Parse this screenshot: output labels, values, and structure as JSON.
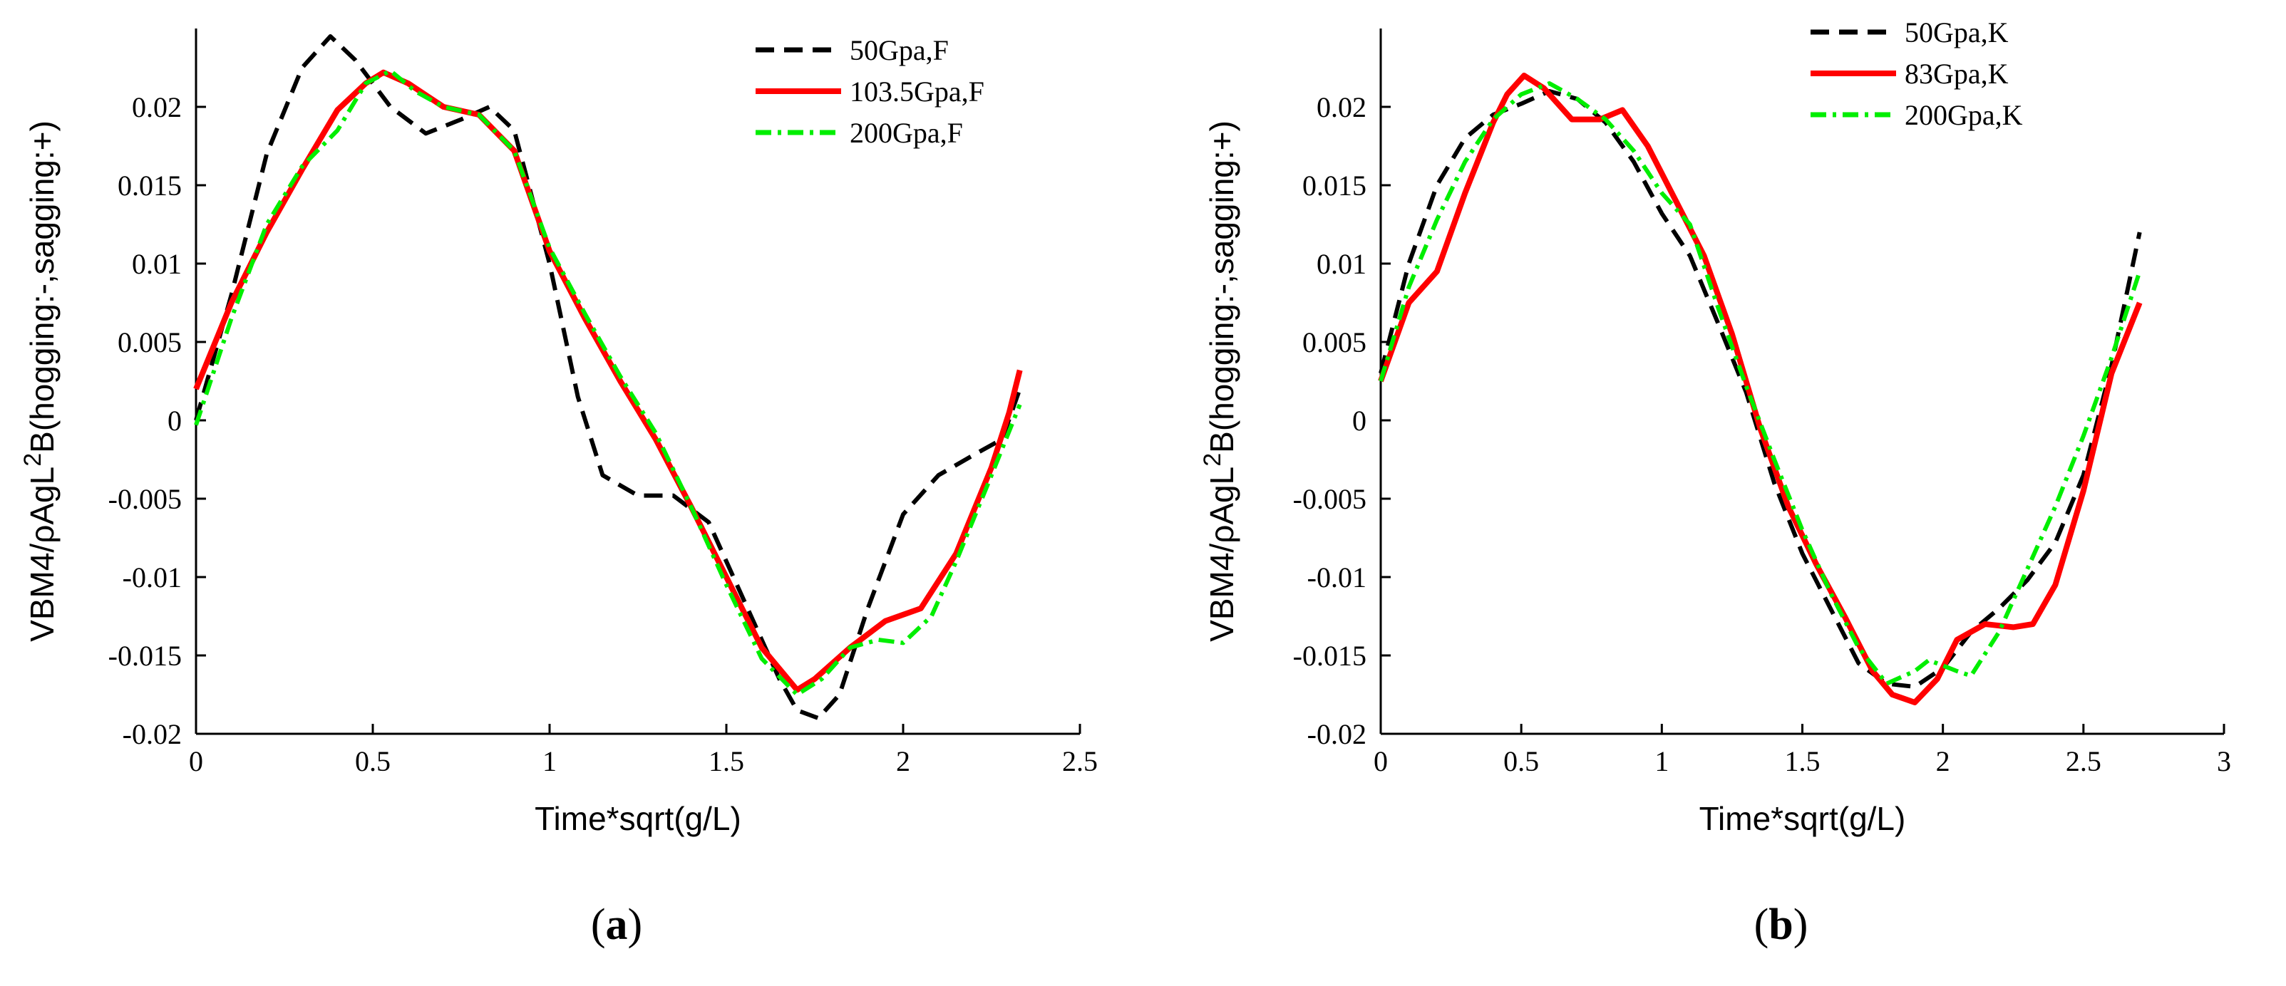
{
  "chart_data": [
    {
      "type": "line",
      "caption": "(a)",
      "caption_letter": "a",
      "xlabel": "Time*sqrt(g/L)",
      "ylabel": "VBM4/ρAgL²B(hogging:-,sagging:+)",
      "ylabel_parts": {
        "before": "VBM4/ρAgL",
        "sup": "2",
        "after": "B(hogging:-,sagging:+)"
      },
      "xlim": [
        0,
        2.5
      ],
      "ylim": [
        -0.02,
        0.025
      ],
      "xticks": [
        0,
        0.5,
        1,
        1.5,
        2,
        2.5
      ],
      "xtick_labels": [
        "0",
        "0.5",
        "1",
        "1.5",
        "2",
        "2.5"
      ],
      "yticks": [
        -0.02,
        -0.015,
        -0.01,
        -0.005,
        0,
        0.005,
        0.01,
        0.015,
        0.02
      ],
      "ytick_labels": [
        "-0.02",
        "-0.015",
        "-0.01",
        "-0.005",
        "0",
        "0.005",
        "0.01",
        "0.015",
        "0.02"
      ],
      "grid": false,
      "legend_position": "top-right",
      "series": [
        {
          "name": "50Gpa,F",
          "color": "#000000",
          "dash": "dashed",
          "x": [
            0,
            0.1,
            0.2,
            0.3,
            0.38,
            0.45,
            0.55,
            0.65,
            0.75,
            0.83,
            0.9,
            1.0,
            1.08,
            1.15,
            1.25,
            1.35,
            1.45,
            1.55,
            1.65,
            1.7,
            1.76,
            1.82,
            1.9,
            2.0,
            2.1,
            2.2,
            2.28,
            2.33
          ],
          "y": [
            0,
            0.008,
            0.017,
            0.0225,
            0.0245,
            0.023,
            0.02,
            0.0183,
            0.0192,
            0.02,
            0.0185,
            0.01,
            0.0015,
            -0.0035,
            -0.0048,
            -0.0048,
            -0.0065,
            -0.0115,
            -0.0165,
            -0.0185,
            -0.019,
            -0.0175,
            -0.012,
            -0.006,
            -0.0035,
            -0.0022,
            -0.0012,
            0.002
          ]
        },
        {
          "name": "103.5Gpa,F",
          "color": "#ff0000",
          "dash": "solid",
          "x": [
            0,
            0.1,
            0.2,
            0.3,
            0.4,
            0.48,
            0.53,
            0.6,
            0.7,
            0.8,
            0.9,
            1.0,
            1.1,
            1.2,
            1.3,
            1.4,
            1.5,
            1.6,
            1.7,
            1.75,
            1.85,
            1.95,
            2.05,
            2.15,
            2.25,
            2.3,
            2.33
          ],
          "y": [
            0.002,
            0.0075,
            0.012,
            0.016,
            0.0198,
            0.0215,
            0.0222,
            0.0215,
            0.02,
            0.0195,
            0.0172,
            0.0108,
            0.0065,
            0.0025,
            -0.0012,
            -0.0055,
            -0.01,
            -0.0145,
            -0.0172,
            -0.0165,
            -0.0145,
            -0.0128,
            -0.012,
            -0.0085,
            -0.003,
            0.0005,
            0.0032
          ]
        },
        {
          "name": "200Gpa,F",
          "color": "#00ee00",
          "dash": "dashdot",
          "x": [
            0,
            0.1,
            0.2,
            0.3,
            0.4,
            0.48,
            0.55,
            0.62,
            0.7,
            0.8,
            0.9,
            1.0,
            1.1,
            1.2,
            1.3,
            1.4,
            1.5,
            1.6,
            1.7,
            1.77,
            1.85,
            1.93,
            2.0,
            2.08,
            2.15,
            2.25,
            2.33
          ],
          "y": [
            -0.0003,
            0.0065,
            0.0125,
            0.0162,
            0.0185,
            0.0215,
            0.0223,
            0.021,
            0.02,
            0.0195,
            0.0172,
            0.011,
            0.0068,
            0.0028,
            -0.0008,
            -0.0055,
            -0.0105,
            -0.0152,
            -0.0175,
            -0.0165,
            -0.0145,
            -0.014,
            -0.0142,
            -0.0125,
            -0.009,
            -0.0035,
            0.001
          ]
        }
      ]
    },
    {
      "type": "line",
      "caption": "(b)",
      "caption_letter": "b",
      "xlabel": "Time*sqrt(g/L)",
      "ylabel": "VBM4/ρAgL²B(hogging:-,sagging:+)",
      "ylabel_parts": {
        "before": "VBM4/ρAgL",
        "sup": "2",
        "after": "B(hogging:-,sagging:+)"
      },
      "xlim": [
        0,
        3
      ],
      "ylim": [
        -0.02,
        0.025
      ],
      "xticks": [
        0,
        0.5,
        1,
        1.5,
        2,
        2.5,
        3
      ],
      "xtick_labels": [
        "0",
        "0.5",
        "1",
        "1.5",
        "2",
        "2.5",
        "3"
      ],
      "yticks": [
        -0.02,
        -0.015,
        -0.01,
        -0.005,
        0,
        0.005,
        0.01,
        0.015,
        0.02
      ],
      "ytick_labels": [
        "-0.02",
        "-0.015",
        "-0.01",
        "-0.005",
        "0",
        "0.005",
        "0.01",
        "0.015",
        "0.02"
      ],
      "grid": false,
      "legend_position": "top-right",
      "series": [
        {
          "name": "50Gpa,K",
          "color": "#000000",
          "dash": "dashed",
          "x": [
            0,
            0.1,
            0.2,
            0.3,
            0.4,
            0.5,
            0.6,
            0.7,
            0.8,
            0.9,
            1.0,
            1.1,
            1.2,
            1.3,
            1.4,
            1.5,
            1.6,
            1.7,
            1.8,
            1.9,
            2.0,
            2.1,
            2.2,
            2.3,
            2.4,
            2.5,
            2.6,
            2.7
          ],
          "y": [
            0.003,
            0.01,
            0.015,
            0.018,
            0.0195,
            0.0202,
            0.021,
            0.0205,
            0.019,
            0.0165,
            0.0132,
            0.0105,
            0.0062,
            0.0018,
            -0.004,
            -0.0085,
            -0.012,
            -0.0155,
            -0.0168,
            -0.017,
            -0.0158,
            -0.0135,
            -0.012,
            -0.0102,
            -0.0078,
            -0.0035,
            0.0035,
            0.012
          ]
        },
        {
          "name": "83Gpa,K",
          "color": "#ff0000",
          "dash": "solid",
          "x": [
            0,
            0.1,
            0.2,
            0.3,
            0.4,
            0.45,
            0.51,
            0.58,
            0.68,
            0.78,
            0.86,
            0.95,
            1.05,
            1.15,
            1.25,
            1.35,
            1.45,
            1.55,
            1.65,
            1.75,
            1.82,
            1.9,
            1.98,
            2.05,
            2.15,
            2.25,
            2.32,
            2.4,
            2.5,
            2.6,
            2.7
          ],
          "y": [
            0.0025,
            0.0075,
            0.0095,
            0.0145,
            0.019,
            0.0208,
            0.022,
            0.0212,
            0.0192,
            0.0192,
            0.0198,
            0.0175,
            0.014,
            0.0105,
            0.0055,
            -0.0005,
            -0.0055,
            -0.0092,
            -0.0125,
            -0.016,
            -0.0175,
            -0.018,
            -0.0165,
            -0.014,
            -0.013,
            -0.0132,
            -0.013,
            -0.0105,
            -0.0045,
            0.003,
            0.0075
          ]
        },
        {
          "name": "200Gpa,K",
          "color": "#00ee00",
          "dash": "dashdot",
          "x": [
            0,
            0.1,
            0.2,
            0.3,
            0.4,
            0.5,
            0.6,
            0.7,
            0.8,
            0.9,
            1.0,
            1.1,
            1.2,
            1.3,
            1.4,
            1.5,
            1.6,
            1.7,
            1.8,
            1.9,
            1.95,
            2.05,
            2.1,
            2.2,
            2.3,
            2.4,
            2.5,
            2.6,
            2.7
          ],
          "y": [
            0.0025,
            0.0085,
            0.0128,
            0.0165,
            0.0192,
            0.0208,
            0.0215,
            0.0205,
            0.0192,
            0.0172,
            0.0145,
            0.0125,
            0.0072,
            0.0022,
            -0.0025,
            -0.007,
            -0.011,
            -0.0145,
            -0.0168,
            -0.016,
            -0.0153,
            -0.016,
            -0.0163,
            -0.0135,
            -0.0095,
            -0.0055,
            -0.001,
            0.004,
            0.0095
          ]
        }
      ]
    }
  ]
}
